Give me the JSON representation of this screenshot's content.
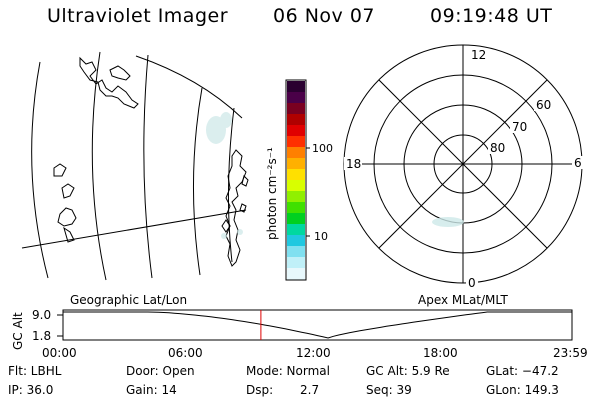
{
  "header": {
    "instrument": "Ultraviolet Imager",
    "date": "06 Nov 07",
    "time": "09:19:48 UT"
  },
  "colorbar": {
    "unit_label": "photon cm⁻²s⁻¹",
    "ticks": [
      "100",
      "10"
    ],
    "colors": [
      "#2a0030",
      "#4a0048",
      "#7a0020",
      "#b00000",
      "#e00000",
      "#ff3000",
      "#ff8000",
      "#ffb000",
      "#ffe000",
      "#d8ff00",
      "#90f000",
      "#40e000",
      "#00d020",
      "#00d8a0",
      "#20c8e0",
      "#80e0f0",
      "#c0f0f8",
      "#e8f8fc"
    ]
  },
  "geo_map": {
    "label": "Geographic Lat/Lon"
  },
  "polar_plot": {
    "label": "Apex MLat/MLT",
    "mlt_labels": {
      "top": "12",
      "right": "6",
      "bottom": "0",
      "left": "18"
    },
    "lat_labels": [
      "60",
      "70",
      "80"
    ]
  },
  "timeline": {
    "ylabel": "GC Alt",
    "y_ticks": [
      "9.0",
      "1.8"
    ],
    "x_ticks": [
      "00:00",
      "06:00",
      "12:00",
      "18:00",
      "23:59"
    ],
    "marker_time_hours": 9.33
  },
  "footer": {
    "row1": {
      "flt": "Flt: LBHL",
      "door": "Door: Open",
      "mode": "Mode: Normal",
      "gcalt": "GC Alt: 5.9 Re",
      "glat": "GLat: −47.2"
    },
    "row2": {
      "ip": "IP: 36.0",
      "gain": "Gain: 14",
      "dsp_label": "Dsp:",
      "dsp_value": "2.7",
      "seq": "Seq: 39",
      "glon": "GLon: 149.3"
    }
  }
}
